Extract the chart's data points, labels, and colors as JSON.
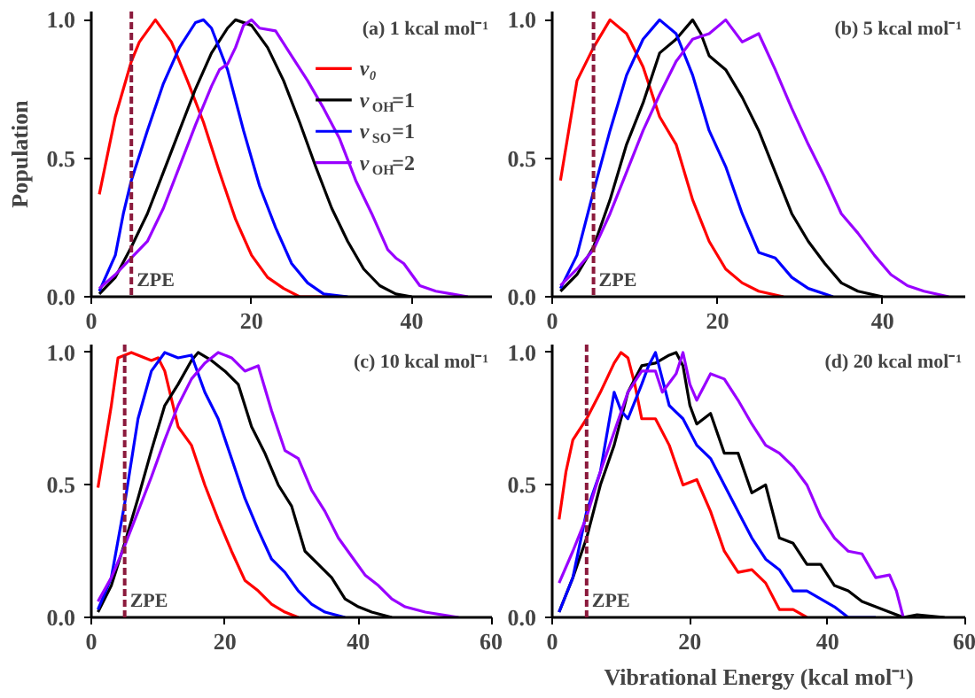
{
  "chart_data": [
    {
      "type": "line",
      "title": "(a) 1 kcal mol⁻¹",
      "ylabel": "Population",
      "xlim": [
        0,
        50
      ],
      "xticks": [
        0,
        20,
        40
      ],
      "ylim": [
        0,
        1.03
      ],
      "yticks": [
        {
          "value": 0,
          "label": "0.0"
        },
        {
          "value": 0.5,
          "label": "0.5"
        },
        {
          "value": 1,
          "label": "1.0"
        }
      ],
      "grid": false,
      "legend": "right",
      "ref_lines": [
        {
          "axis": "x",
          "value": 5,
          "label": "ZPE",
          "color": "#8b1a3c",
          "line_style": "dashed"
        }
      ],
      "series": [
        {
          "name": "ν₀",
          "color": "#ff0000",
          "x": [
            1,
            3,
            5,
            6,
            8,
            10,
            12,
            14,
            16,
            18,
            20,
            22,
            24,
            26,
            30
          ],
          "values": [
            0.37,
            0.65,
            0.85,
            0.92,
            1.0,
            0.92,
            0.78,
            0.63,
            0.45,
            0.28,
            0.15,
            0.07,
            0.03,
            0.0,
            0.0
          ]
        },
        {
          "name": "ν$_{OH}$=1",
          "color": "#000000",
          "x": [
            1,
            3,
            5,
            7,
            9,
            11,
            13,
            15,
            17,
            18,
            20,
            22,
            24,
            26,
            28,
            30,
            32,
            34,
            36,
            38,
            40
          ],
          "values": [
            0.01,
            0.07,
            0.18,
            0.3,
            0.45,
            0.6,
            0.75,
            0.88,
            0.97,
            1.0,
            0.98,
            0.9,
            0.78,
            0.63,
            0.47,
            0.32,
            0.2,
            0.1,
            0.04,
            0.01,
            0.0
          ]
        },
        {
          "name": "ν$_{SO}$=1",
          "color": "#0000ff",
          "x": [
            1,
            3,
            4,
            5,
            7,
            9,
            11,
            13,
            14,
            15,
            17,
            19,
            21,
            23,
            25,
            27,
            29,
            32
          ],
          "values": [
            0.02,
            0.15,
            0.3,
            0.42,
            0.6,
            0.77,
            0.9,
            0.99,
            1.0,
            0.97,
            0.82,
            0.6,
            0.4,
            0.25,
            0.12,
            0.05,
            0.01,
            0.0
          ]
        },
        {
          "name": "ν$_{OH}$=2",
          "color": "#9900ff",
          "x": [
            1,
            3,
            5,
            7,
            9,
            11,
            13,
            15,
            16,
            17,
            18,
            19,
            20,
            21,
            23,
            25,
            27,
            29,
            31,
            33,
            35,
            37,
            38,
            39,
            41,
            43,
            45,
            47
          ],
          "values": [
            0.03,
            0.08,
            0.14,
            0.2,
            0.32,
            0.47,
            0.62,
            0.76,
            0.82,
            0.84,
            0.9,
            0.98,
            1.0,
            0.97,
            0.96,
            0.87,
            0.78,
            0.68,
            0.57,
            0.42,
            0.3,
            0.17,
            0.14,
            0.12,
            0.04,
            0.02,
            0.01,
            0.0
          ]
        }
      ]
    },
    {
      "type": "line",
      "title": "(b) 5 kcal mol⁻¹",
      "xlim": [
        0,
        50
      ],
      "xticks": [
        0,
        20,
        40
      ],
      "ylim": [
        0,
        1.03
      ],
      "yticks": [
        {
          "value": 0,
          "label": "0.0"
        },
        {
          "value": 0.5,
          "label": "0.5"
        },
        {
          "value": 1,
          "label": "1.0"
        }
      ],
      "grid": false,
      "ref_lines": [
        {
          "axis": "x",
          "value": 5,
          "label": "ZPE",
          "color": "#8b1a3c",
          "line_style": "dashed"
        }
      ],
      "series": [
        {
          "color": "#ff0000",
          "x": [
            1,
            2,
            3,
            5,
            7,
            9,
            11,
            13,
            15,
            17,
            19,
            21,
            23,
            25,
            28
          ],
          "values": [
            0.42,
            0.6,
            0.78,
            0.9,
            1.0,
            0.95,
            0.83,
            0.65,
            0.55,
            0.35,
            0.2,
            0.1,
            0.05,
            0.02,
            0.0
          ]
        },
        {
          "color": "#000000",
          "x": [
            1,
            3,
            5,
            7,
            9,
            11,
            13,
            15,
            17,
            18,
            19,
            21,
            23,
            25,
            27,
            29,
            31,
            33,
            35,
            37,
            40
          ],
          "values": [
            0.02,
            0.08,
            0.18,
            0.35,
            0.55,
            0.7,
            0.88,
            0.93,
            1.0,
            0.95,
            0.87,
            0.82,
            0.72,
            0.6,
            0.45,
            0.3,
            0.2,
            0.12,
            0.05,
            0.02,
            0.0
          ]
        },
        {
          "color": "#0000ff",
          "x": [
            1,
            3,
            5,
            7,
            9,
            11,
            13,
            15,
            17,
            19,
            21,
            23,
            25,
            27,
            29,
            31,
            34
          ],
          "values": [
            0.03,
            0.15,
            0.38,
            0.6,
            0.8,
            0.93,
            1.0,
            0.95,
            0.8,
            0.6,
            0.47,
            0.3,
            0.16,
            0.14,
            0.07,
            0.03,
            0.0
          ]
        },
        {
          "color": "#9900ff",
          "x": [
            1,
            3,
            5,
            7,
            9,
            11,
            13,
            15,
            17,
            19,
            21,
            23,
            25,
            27,
            29,
            31,
            33,
            35,
            37,
            39,
            41,
            43,
            45,
            48
          ],
          "values": [
            0.04,
            0.1,
            0.17,
            0.3,
            0.45,
            0.6,
            0.73,
            0.85,
            0.93,
            0.95,
            1.0,
            0.92,
            0.95,
            0.82,
            0.68,
            0.55,
            0.43,
            0.3,
            0.23,
            0.15,
            0.08,
            0.04,
            0.02,
            0.0
          ]
        }
      ]
    },
    {
      "type": "line",
      "title": "(c) 10 kcal mol⁻¹",
      "xlim": [
        0,
        60
      ],
      "xticks": [
        0,
        20,
        40,
        60
      ],
      "ylim": [
        0,
        1.03
      ],
      "yticks": [
        {
          "value": 0,
          "label": "0.0"
        },
        {
          "value": 0.5,
          "label": "0.5"
        },
        {
          "value": 1,
          "label": "1.0"
        }
      ],
      "grid": false,
      "ref_lines": [
        {
          "axis": "x",
          "value": 5,
          "label": "ZPE",
          "color": "#8b1a3c",
          "line_style": "dashed"
        }
      ],
      "series": [
        {
          "color": "#ff0000",
          "x": [
            1,
            3,
            4,
            6,
            8,
            9,
            10,
            11,
            13,
            15,
            17,
            19,
            21,
            23,
            25,
            27,
            29,
            31
          ],
          "values": [
            0.49,
            0.8,
            0.98,
            1.0,
            0.98,
            0.97,
            0.98,
            0.93,
            0.72,
            0.65,
            0.5,
            0.37,
            0.25,
            0.14,
            0.1,
            0.05,
            0.02,
            0.0
          ]
        },
        {
          "color": "#000000",
          "x": [
            1,
            3,
            5,
            7,
            9,
            11,
            13,
            15,
            16,
            18,
            20,
            22,
            24,
            26,
            28,
            30,
            32,
            34,
            36,
            38,
            40,
            42,
            45
          ],
          "values": [
            0.02,
            0.12,
            0.28,
            0.45,
            0.63,
            0.8,
            0.88,
            0.97,
            1.0,
            0.97,
            0.93,
            0.88,
            0.72,
            0.62,
            0.5,
            0.42,
            0.25,
            0.2,
            0.15,
            0.07,
            0.04,
            0.02,
            0.0
          ]
        },
        {
          "color": "#0000ff",
          "x": [
            1,
            3,
            5,
            7,
            9,
            11,
            13,
            15,
            17,
            19,
            21,
            23,
            25,
            27,
            29,
            31,
            33,
            35,
            38
          ],
          "values": [
            0.03,
            0.15,
            0.43,
            0.75,
            0.93,
            1.0,
            0.98,
            0.99,
            0.85,
            0.75,
            0.6,
            0.45,
            0.33,
            0.22,
            0.17,
            0.1,
            0.05,
            0.02,
            0.0
          ]
        },
        {
          "color": "#9900ff",
          "x": [
            1,
            3,
            5,
            7,
            9,
            11,
            13,
            15,
            17,
            19,
            21,
            23,
            25,
            27,
            29,
            31,
            33,
            35,
            37,
            39,
            41,
            43,
            45,
            47,
            50,
            55
          ],
          "values": [
            0.06,
            0.15,
            0.27,
            0.4,
            0.53,
            0.67,
            0.8,
            0.9,
            0.96,
            1.0,
            0.98,
            0.93,
            0.95,
            0.78,
            0.63,
            0.6,
            0.48,
            0.4,
            0.3,
            0.23,
            0.16,
            0.12,
            0.07,
            0.04,
            0.02,
            0.0
          ]
        }
      ]
    },
    {
      "type": "line",
      "title": "(d) 20 kcal mol⁻¹",
      "xlabel": "Vibrational Energy (kcal mol⁻¹)",
      "xlim": [
        0,
        60
      ],
      "xticks": [
        0,
        20,
        40,
        60
      ],
      "ylim": [
        0,
        1.03
      ],
      "yticks": [
        {
          "value": 0,
          "label": "0.0"
        },
        {
          "value": 0.5,
          "label": "0.5"
        },
        {
          "value": 1,
          "label": "1.0"
        }
      ],
      "grid": false,
      "ref_lines": [
        {
          "axis": "x",
          "value": 5,
          "label": "ZPE",
          "color": "#8b1a3c",
          "line_style": "dashed"
        }
      ],
      "series": [
        {
          "color": "#ff0000",
          "x": [
            1,
            2,
            3,
            5,
            7,
            9,
            10,
            11,
            12,
            13,
            15,
            17,
            19,
            21,
            23,
            25,
            27,
            29,
            31,
            33,
            35,
            37
          ],
          "values": [
            0.37,
            0.55,
            0.67,
            0.75,
            0.85,
            0.96,
            1.0,
            0.98,
            0.88,
            0.75,
            0.75,
            0.65,
            0.5,
            0.52,
            0.4,
            0.25,
            0.17,
            0.18,
            0.13,
            0.03,
            0.03,
            0.0
          ]
        },
        {
          "color": "#000000",
          "x": [
            1,
            3,
            5,
            7,
            9,
            11,
            13,
            15,
            17,
            18,
            19,
            20,
            21,
            23,
            25,
            27,
            29,
            31,
            33,
            35,
            37,
            39,
            41,
            43,
            45,
            47,
            49,
            51,
            53,
            57
          ],
          "values": [
            0.02,
            0.15,
            0.3,
            0.5,
            0.65,
            0.85,
            0.95,
            0.96,
            0.99,
            1.0,
            0.95,
            0.8,
            0.73,
            0.77,
            0.62,
            0.62,
            0.47,
            0.5,
            0.3,
            0.28,
            0.2,
            0.2,
            0.12,
            0.1,
            0.06,
            0.04,
            0.02,
            0.0,
            0.01,
            0.0
          ]
        },
        {
          "color": "#0000ff",
          "x": [
            1,
            3,
            5,
            7,
            8,
            9,
            10,
            11,
            13,
            14,
            15,
            16,
            17,
            19,
            21,
            23,
            25,
            27,
            29,
            31,
            33,
            35,
            37,
            39,
            41,
            43,
            47
          ],
          "values": [
            0.02,
            0.15,
            0.4,
            0.55,
            0.7,
            0.85,
            0.78,
            0.75,
            0.88,
            0.95,
            1.0,
            0.9,
            0.8,
            0.75,
            0.65,
            0.6,
            0.5,
            0.4,
            0.3,
            0.22,
            0.18,
            0.1,
            0.1,
            0.07,
            0.04,
            0.0,
            0.0
          ]
        },
        {
          "color": "#9900ff",
          "x": [
            1,
            3,
            5,
            7,
            9,
            11,
            13,
            15,
            16,
            18,
            19,
            20,
            21,
            23,
            25,
            27,
            29,
            31,
            33,
            35,
            37,
            39,
            41,
            43,
            45,
            47,
            49,
            50,
            51
          ],
          "values": [
            0.13,
            0.25,
            0.38,
            0.55,
            0.7,
            0.85,
            0.93,
            0.93,
            0.85,
            0.92,
            1.0,
            0.88,
            0.82,
            0.92,
            0.9,
            0.82,
            0.73,
            0.65,
            0.62,
            0.57,
            0.5,
            0.38,
            0.3,
            0.25,
            0.24,
            0.15,
            0.16,
            0.1,
            0.0
          ]
        }
      ]
    }
  ]
}
